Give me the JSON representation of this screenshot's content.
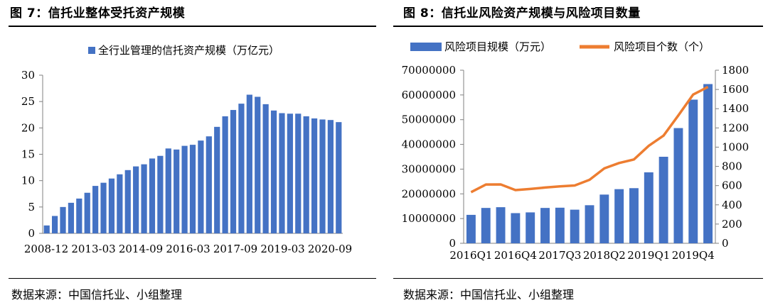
{
  "left": {
    "figure_title": "图 7：信托业整体受托资产规模",
    "source": "数据来源：中国信托业、小组整理"
  },
  "right": {
    "figure_title": "图 8：信托业风险资产规模与风险项目数量",
    "source": "数据来源：中国信托业、小组整理"
  },
  "colors": {
    "bar": "#4472C4",
    "line": "#ED7D31",
    "axis": "#808080"
  },
  "chart_data": [
    {
      "type": "bar",
      "legend": [
        "全行业管理的信托资产规模（万亿元）"
      ],
      "legend_position": "top",
      "x_tick_labels": [
        "2008-12",
        "2013-03",
        "2014-09",
        "2016-03",
        "2017-09",
        "2019-03",
        "2020-09"
      ],
      "y_ticks": [
        0,
        5,
        10,
        15,
        20,
        25,
        30
      ],
      "ylim": [
        0,
        30
      ],
      "grid": false,
      "series": [
        {
          "name": "全行业管理的信托资产规模（万亿元）",
          "values": [
            1.5,
            3.3,
            5.0,
            5.8,
            6.6,
            7.7,
            9.0,
            9.6,
            10.4,
            11.2,
            12.0,
            12.7,
            13.1,
            14.2,
            14.7,
            16.1,
            15.9,
            16.6,
            16.8,
            17.6,
            18.4,
            20.2,
            22.2,
            23.4,
            24.6,
            26.3,
            25.9,
            24.5,
            23.3,
            22.8,
            22.7,
            22.7,
            22.2,
            21.8,
            21.6,
            21.5,
            21.1
          ]
        }
      ]
    },
    {
      "type": "bar",
      "legend": [
        "风险项目规模（万元）",
        "风险项目个数（个）"
      ],
      "legend_position": "top",
      "categories": [
        "2016Q1",
        "2016Q2",
        "2016Q3",
        "2016Q4",
        "2017Q1",
        "2017Q2",
        "2017Q3",
        "2017Q4",
        "2018Q1",
        "2018Q2",
        "2018Q3",
        "2018Q4",
        "2019Q1",
        "2019Q2",
        "2019Q3",
        "2019Q4",
        "2020Q1"
      ],
      "x_tick_labels": [
        "2016Q1",
        "2016Q4",
        "2017Q3",
        "2018Q2",
        "2019Q1",
        "2019Q4"
      ],
      "y_ticks": [
        0,
        10000000,
        20000000,
        30000000,
        40000000,
        50000000,
        60000000,
        70000000
      ],
      "y2_ticks": [
        0,
        200,
        400,
        600,
        800,
        1000,
        1200,
        1400,
        1600,
        1800
      ],
      "ylim": [
        0,
        70000000
      ],
      "y2lim": [
        0,
        1800
      ],
      "grid": false,
      "series": [
        {
          "name": "风险项目规模（万元）",
          "type": "bar",
          "axis": "left",
          "values": [
            11500000,
            14300000,
            14600000,
            12200000,
            12500000,
            14300000,
            14400000,
            13600000,
            15400000,
            19700000,
            21900000,
            22300000,
            28700000,
            35000000,
            46600000,
            58100000,
            64400000
          ]
        },
        {
          "name": "风险项目个数（个）",
          "type": "line",
          "axis": "right",
          "values": [
            532,
            611,
            612,
            553,
            565,
            580,
            592,
            601,
            660,
            779,
            835,
            872,
            1014,
            1120,
            1330,
            1547,
            1626
          ]
        }
      ]
    }
  ]
}
